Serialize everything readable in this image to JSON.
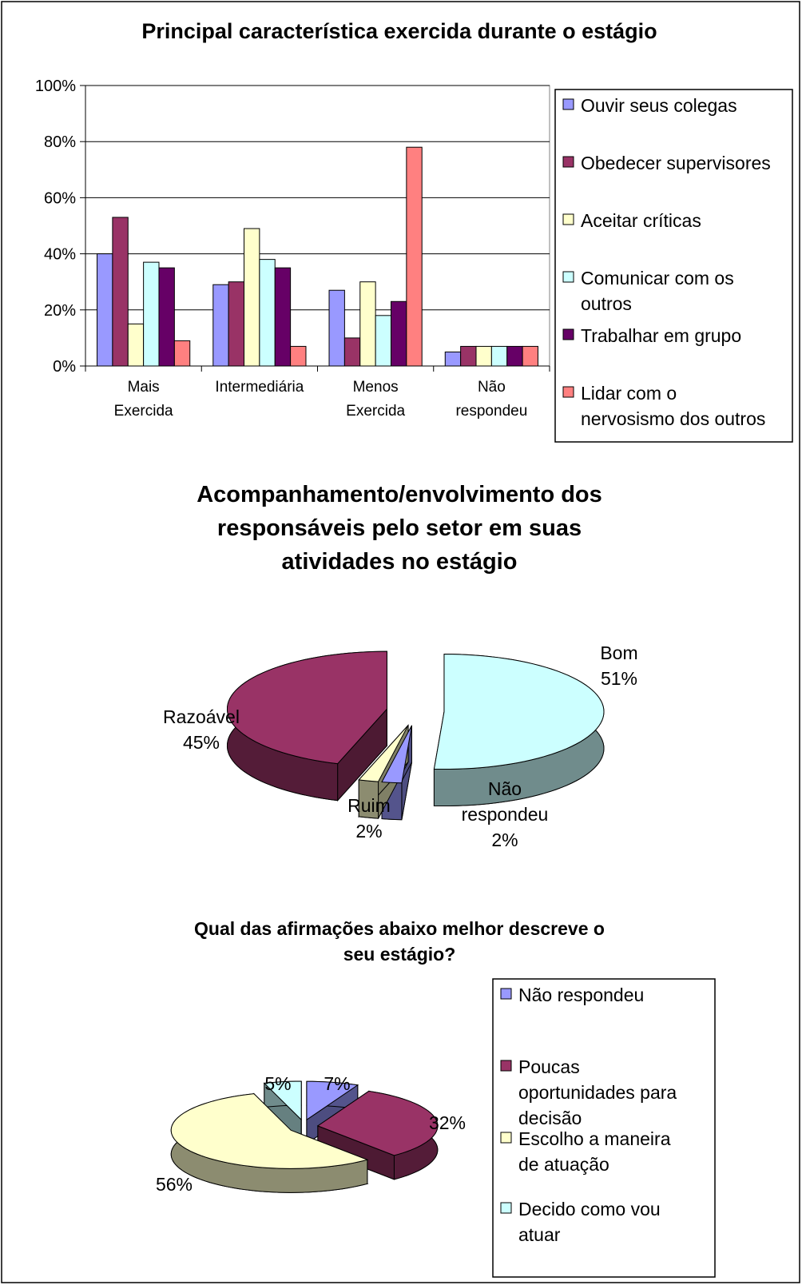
{
  "chart_data": [
    {
      "type": "bar",
      "title": "Principal característica exercida durante o estágio",
      "categories": [
        "Mais Exercida",
        "Intermediária",
        "Menos Exercida",
        "Não respondeu"
      ],
      "series": [
        {
          "name": "Ouvir seus colegas",
          "color": "#9999ff",
          "values": [
            40,
            29,
            27,
            5
          ]
        },
        {
          "name": "Obedecer supervisores",
          "color": "#993366",
          "values": [
            53,
            30,
            10,
            7
          ]
        },
        {
          "name": "Aceitar críticas",
          "color": "#ffffcc",
          "values": [
            15,
            49,
            30,
            7
          ]
        },
        {
          "name": "Comunicar com os outros",
          "color": "#ccffff",
          "values": [
            37,
            38,
            18,
            7
          ]
        },
        {
          "name": "Trabalhar em grupo",
          "color": "#660066",
          "values": [
            35,
            35,
            23,
            7
          ]
        },
        {
          "name": "Lidar com o nervosismo dos outros",
          "color": "#ff8080",
          "values": [
            9,
            7,
            78,
            7
          ]
        }
      ],
      "ylim": [
        0,
        100
      ],
      "yticks": [
        {
          "value": 0,
          "label": "0%"
        },
        {
          "value": 20,
          "label": "20%"
        },
        {
          "value": 40,
          "label": "40%"
        },
        {
          "value": 60,
          "label": "60%"
        },
        {
          "value": 80,
          "label": "80%"
        },
        {
          "value": 100,
          "label": "100%"
        }
      ],
      "grid": true,
      "legend": "right"
    },
    {
      "type": "pie3d",
      "title": "Acompanhamento/envolvimento dos responsáveis pelo setor em suas atividades no estágio",
      "categories": [
        "Bom",
        "Não respondeu",
        "Ruim",
        "Razoável"
      ],
      "values": [
        51,
        2,
        2,
        45
      ],
      "value_labels": [
        "51%",
        "2%",
        "2%",
        "45%"
      ],
      "colors": [
        "#ccffff",
        "#9999ff",
        "#ffffcc",
        "#993366"
      ]
    },
    {
      "type": "pie3d",
      "title": "Qual das afirmações abaixo melhor descreve o seu estágio?",
      "categories": [
        "Não respondeu",
        "Poucas oportunidades para decisão",
        "Escolho a maneira de atuação",
        "Decido como vou atuar"
      ],
      "values": [
        7,
        32,
        56,
        5
      ],
      "value_labels": [
        "7%",
        "32%",
        "56%",
        "5%"
      ],
      "colors": [
        "#9999ff",
        "#993366",
        "#ffffcc",
        "#ccffff"
      ],
      "legend": "right"
    }
  ]
}
